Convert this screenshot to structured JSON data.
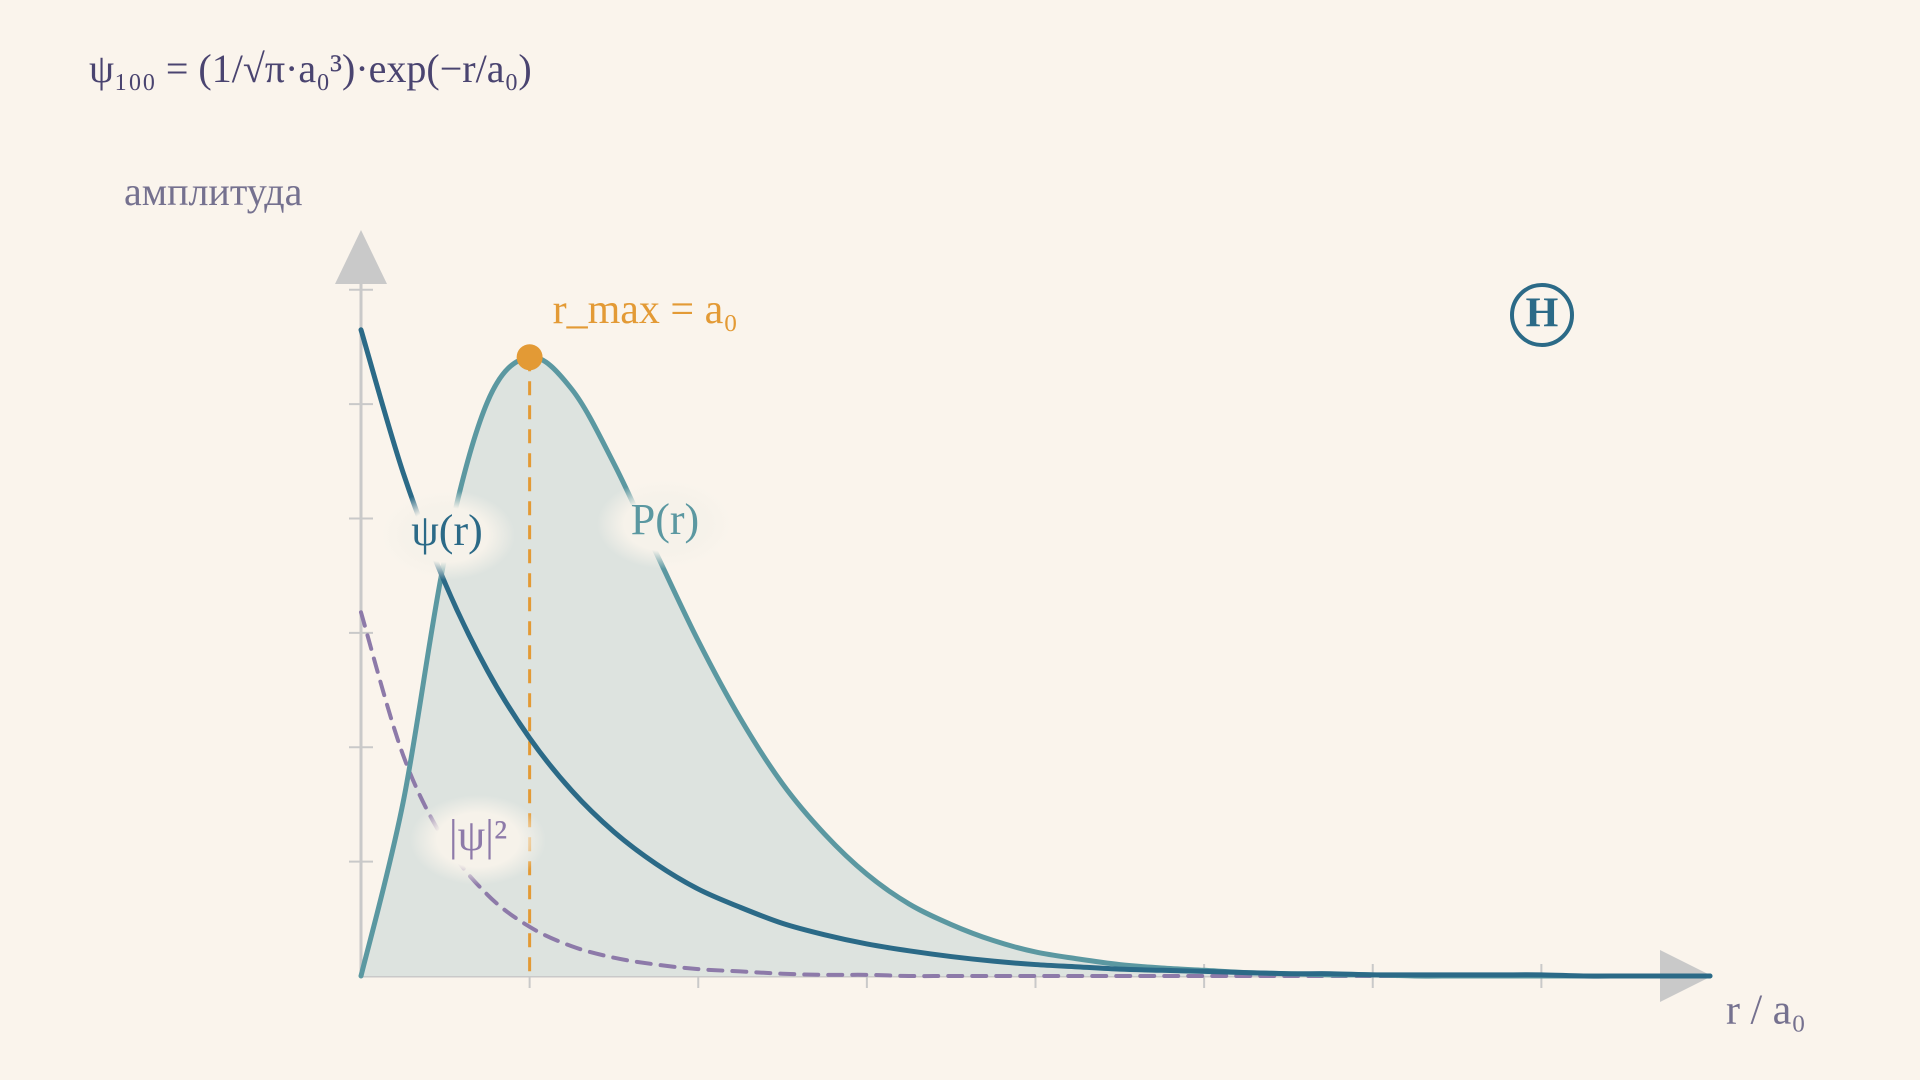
{
  "chart_data": {
    "type": "line",
    "title": "ψ₁₀₀ = (1/√π·a₀³)·exp(−r/a₀)",
    "y_label": "амплитуда",
    "x_label": "r / a₀",
    "annotation": "r_max = a₀",
    "badge": "H",
    "x": [
      0,
      0.25,
      0.5,
      0.75,
      1,
      1.25,
      1.5,
      1.75,
      2,
      2.25,
      2.5,
      2.75,
      3,
      3.25,
      3.5,
      3.75,
      4,
      4.25,
      4.5,
      4.75,
      5,
      5.25,
      5.5,
      5.75,
      6,
      6.25,
      6.5,
      6.75,
      7,
      7.25,
      7.5,
      7.75,
      8
    ],
    "series": [
      {
        "name": "ψ(r)",
        "color": "#2b6a87",
        "dashed": false,
        "filled": false,
        "values": [
          5.65,
          4.4,
          3.43,
          2.67,
          2.08,
          1.62,
          1.26,
          0.98,
          0.76,
          0.6,
          0.46,
          0.36,
          0.28,
          0.22,
          0.17,
          0.13,
          0.1,
          0.08,
          0.06,
          0.05,
          0.04,
          0.03,
          0.02,
          0.02,
          0.01,
          0.01,
          0.01,
          0.01,
          0.01,
          0,
          0,
          0,
          0
        ]
      },
      {
        "name": "P(r)",
        "color": "#5b98a1",
        "dashed": false,
        "filled": true,
        "values": [
          0,
          1.52,
          3.68,
          5.02,
          5.41,
          5.13,
          4.48,
          3.7,
          2.93,
          2.25,
          1.68,
          1.24,
          0.89,
          0.63,
          0.45,
          0.31,
          0.21,
          0.15,
          0.1,
          0.07,
          0.05,
          0.03,
          0.02,
          0.01,
          0.01,
          0,
          0,
          0,
          0,
          0,
          0,
          0,
          0
        ]
      },
      {
        "name": "|ψ|²",
        "color": "#8d7aa9",
        "dashed": true,
        "filled": false,
        "values": [
          3.18,
          1.93,
          1.17,
          0.71,
          0.43,
          0.26,
          0.16,
          0.1,
          0.06,
          0.04,
          0.02,
          0.01,
          0.01,
          0,
          0,
          0,
          0,
          0,
          0,
          0,
          0,
          0,
          0,
          0,
          0,
          0,
          0,
          0,
          0,
          0,
          0,
          0,
          0
        ]
      }
    ],
    "xlim": [
      0,
      8
    ],
    "ylim": [
      0,
      6.4
    ],
    "xticks": [
      1,
      2,
      3,
      4,
      5,
      6,
      7
    ],
    "yticks": [
      1,
      2,
      3,
      4,
      5,
      6
    ],
    "annotation_color": "#e39a35"
  }
}
